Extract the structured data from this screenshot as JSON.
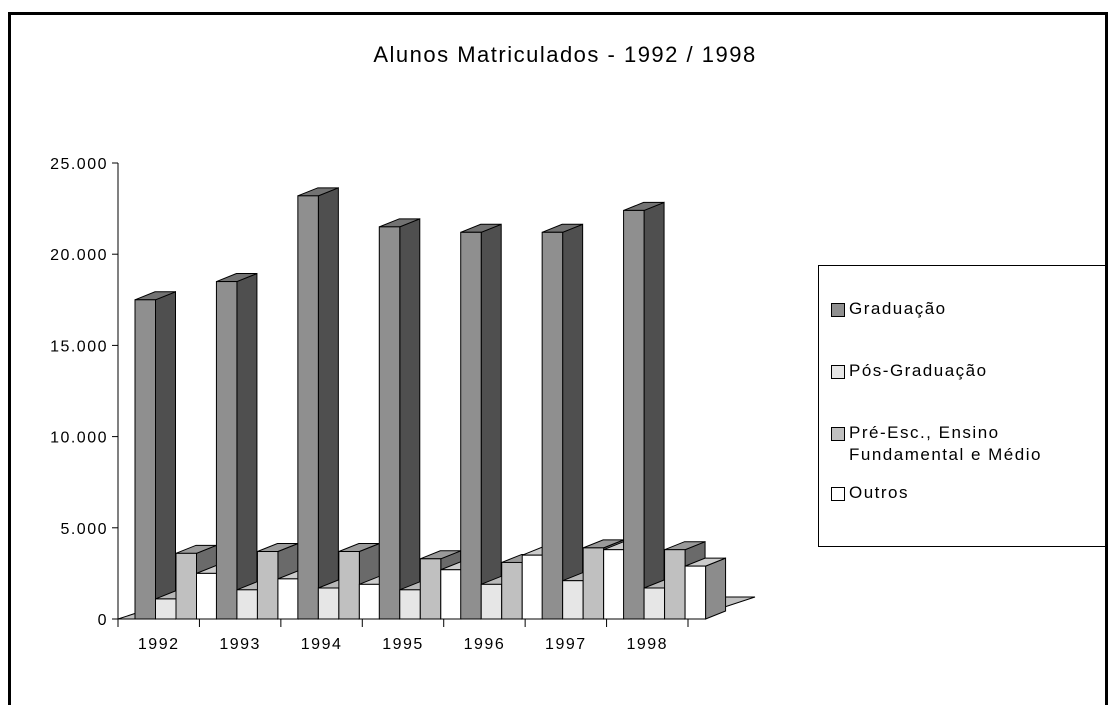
{
  "chart_data": {
    "type": "bar3d",
    "title": "Alunos Matriculados - 1992 / 1998",
    "categories": [
      "1992",
      "1993",
      "1994",
      "1995",
      "1996",
      "1997",
      "1998"
    ],
    "series": [
      {
        "name": "Graduação",
        "color": "#8f8f8f",
        "values": [
          17500,
          18500,
          23200,
          21500,
          21200,
          21200,
          22400
        ]
      },
      {
        "name": "Pós-Graduação",
        "color": "#e6e6e6",
        "values": [
          1100,
          1600,
          1700,
          1600,
          1900,
          2100,
          1700
        ]
      },
      {
        "name": "Pré-Esc., Ensino Fundamental e Médio",
        "color": "#c0c0c0",
        "values": [
          3600,
          3700,
          3700,
          3300,
          3100,
          3900,
          3800
        ]
      },
      {
        "name": "Outros",
        "color": "#ffffff",
        "values": [
          2500,
          2200,
          1900,
          2700,
          3500,
          3800,
          2900
        ]
      }
    ],
    "ylim": [
      0,
      25000
    ],
    "yticks": [
      0,
      {
        "value": 5000,
        "label": "5.000"
      },
      {
        "value": 10000,
        "label": "10.000"
      },
      {
        "value": 15000,
        "label": "15.000"
      },
      {
        "value": 20000,
        "label": "20.000"
      },
      {
        "value": 25000,
        "label": "25.000"
      }
    ],
    "legend": "right",
    "grid": false
  }
}
